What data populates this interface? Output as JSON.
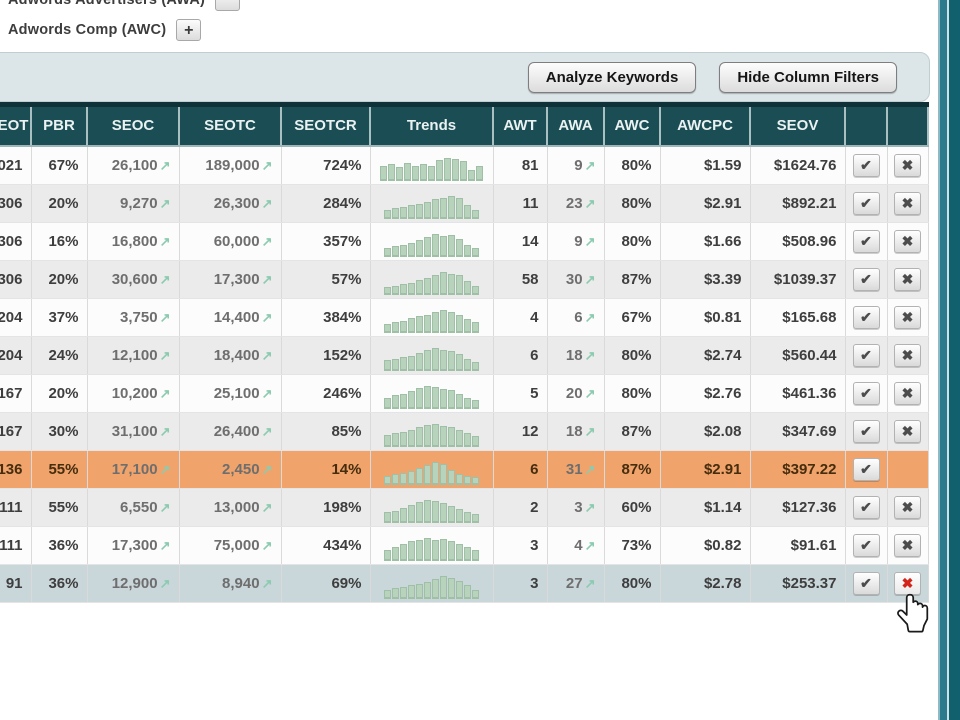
{
  "header_area": {
    "labels": [
      {
        "text": "Adwords Advertisers (AWA)"
      },
      {
        "text": "Adwords Comp (AWC)"
      }
    ]
  },
  "toolbar": {
    "analyze_label": "Analyze Keywords",
    "hide_filters_label": "Hide Column Filters"
  },
  "icons": {
    "plus": "+",
    "check": "✔",
    "remove": "✖",
    "trend_up": "↗"
  },
  "table": {
    "columns": [
      "SEOT",
      "PBR",
      "SEOC",
      "SEOTC",
      "SEOTCR",
      "Trends",
      "AWT",
      "AWA",
      "AWC",
      "AWCPC",
      "SEOV",
      "",
      ""
    ],
    "rows": [
      {
        "seot": "021",
        "pbr": "67%",
        "seoc": "26,100",
        "seotc": "189,000",
        "seotcr": "724%",
        "trend": [
          0.5,
          0.55,
          0.45,
          0.6,
          0.5,
          0.55,
          0.5,
          0.7,
          0.75,
          0.72,
          0.65,
          0.35,
          0.5
        ],
        "awt": "81",
        "awa": "9",
        "awc": "80%",
        "awcpc": "$1.59",
        "seov": "$1624.76",
        "check": true,
        "remove": true,
        "remove_red": false,
        "highlight": "none"
      },
      {
        "seot": "306",
        "pbr": "20%",
        "seoc": "9,270",
        "seotc": "26,300",
        "seotcr": "284%",
        "trend": [
          0.3,
          0.35,
          0.4,
          0.45,
          0.5,
          0.55,
          0.65,
          0.7,
          0.75,
          0.7,
          0.45,
          0.3
        ],
        "awt": "11",
        "awa": "23",
        "awc": "80%",
        "awcpc": "$2.91",
        "seov": "$892.21",
        "check": true,
        "remove": true,
        "remove_red": false,
        "highlight": "none"
      },
      {
        "seot": "306",
        "pbr": "16%",
        "seoc": "16,800",
        "seotc": "60,000",
        "seotcr": "357%",
        "trend": [
          0.3,
          0.35,
          0.4,
          0.45,
          0.55,
          0.65,
          0.75,
          0.7,
          0.72,
          0.6,
          0.4,
          0.3
        ],
        "awt": "14",
        "awa": "9",
        "awc": "80%",
        "awcpc": "$1.66",
        "seov": "$508.96",
        "check": true,
        "remove": true,
        "remove_red": false,
        "highlight": "none"
      },
      {
        "seot": "306",
        "pbr": "20%",
        "seoc": "30,600",
        "seotc": "17,300",
        "seotcr": "57%",
        "trend": [
          0.25,
          0.3,
          0.35,
          0.4,
          0.5,
          0.55,
          0.65,
          0.75,
          0.7,
          0.65,
          0.45,
          0.3
        ],
        "awt": "58",
        "awa": "30",
        "awc": "87%",
        "awcpc": "$3.39",
        "seov": "$1039.37",
        "check": true,
        "remove": true,
        "remove_red": false,
        "highlight": "none"
      },
      {
        "seot": "204",
        "pbr": "37%",
        "seoc": "3,750",
        "seotc": "14,400",
        "seotcr": "384%",
        "trend": [
          0.3,
          0.35,
          0.4,
          0.5,
          0.55,
          0.6,
          0.7,
          0.75,
          0.7,
          0.6,
          0.45,
          0.35
        ],
        "awt": "4",
        "awa": "6",
        "awc": "67%",
        "awcpc": "$0.81",
        "seov": "$165.68",
        "check": true,
        "remove": true,
        "remove_red": false,
        "highlight": "none"
      },
      {
        "seot": "204",
        "pbr": "24%",
        "seoc": "12,100",
        "seotc": "18,400",
        "seotcr": "152%",
        "trend": [
          0.35,
          0.4,
          0.45,
          0.5,
          0.6,
          0.7,
          0.75,
          0.7,
          0.65,
          0.55,
          0.4,
          0.3
        ],
        "awt": "6",
        "awa": "18",
        "awc": "80%",
        "awcpc": "$2.74",
        "seov": "$560.44",
        "check": true,
        "remove": true,
        "remove_red": false,
        "highlight": "none"
      },
      {
        "seot": "167",
        "pbr": "20%",
        "seoc": "10,200",
        "seotc": "25,100",
        "seotcr": "246%",
        "trend": [
          0.35,
          0.45,
          0.5,
          0.6,
          0.7,
          0.75,
          0.72,
          0.68,
          0.62,
          0.5,
          0.35,
          0.3
        ],
        "awt": "5",
        "awa": "20",
        "awc": "80%",
        "awcpc": "$2.76",
        "seov": "$461.36",
        "check": true,
        "remove": true,
        "remove_red": false,
        "highlight": "none"
      },
      {
        "seot": "167",
        "pbr": "30%",
        "seoc": "31,100",
        "seotc": "26,400",
        "seotcr": "85%",
        "trend": [
          0.4,
          0.45,
          0.5,
          0.55,
          0.65,
          0.72,
          0.75,
          0.7,
          0.65,
          0.55,
          0.45,
          0.35
        ],
        "awt": "12",
        "awa": "18",
        "awc": "87%",
        "awcpc": "$2.08",
        "seov": "$347.69",
        "check": true,
        "remove": true,
        "remove_red": false,
        "highlight": "none"
      },
      {
        "seot": "136",
        "pbr": "55%",
        "seoc": "17,100",
        "seotc": "2,450",
        "seotcr": "14%",
        "trend": [
          0.3,
          0.35,
          0.4,
          0.45,
          0.55,
          0.65,
          0.75,
          0.7,
          0.5,
          0.35,
          0.3,
          0.25
        ],
        "awt": "6",
        "awa": "31",
        "awc": "87%",
        "awcpc": "$2.91",
        "seov": "$397.22",
        "check": true,
        "remove": false,
        "remove_red": false,
        "highlight": "orange"
      },
      {
        "seot": "111",
        "pbr": "55%",
        "seoc": "6,550",
        "seotc": "13,000",
        "seotcr": "198%",
        "trend": [
          0.35,
          0.4,
          0.5,
          0.6,
          0.7,
          0.75,
          0.72,
          0.65,
          0.55,
          0.45,
          0.35,
          0.3
        ],
        "awt": "2",
        "awa": "3",
        "awc": "60%",
        "awcpc": "$1.14",
        "seov": "$127.36",
        "check": true,
        "remove": true,
        "remove_red": false,
        "highlight": "none"
      },
      {
        "seot": "111",
        "pbr": "36%",
        "seoc": "17,300",
        "seotc": "75,000",
        "seotcr": "434%",
        "trend": [
          0.35,
          0.45,
          0.55,
          0.65,
          0.7,
          0.75,
          0.7,
          0.72,
          0.65,
          0.55,
          0.45,
          0.35
        ],
        "awt": "3",
        "awa": "4",
        "awc": "73%",
        "awcpc": "$0.82",
        "seov": "$91.61",
        "check": true,
        "remove": true,
        "remove_red": false,
        "highlight": "none"
      },
      {
        "seot": "91",
        "pbr": "36%",
        "seoc": "12,900",
        "seotc": "8,940",
        "seotcr": "69%",
        "trend": [
          0.3,
          0.35,
          0.4,
          0.45,
          0.5,
          0.55,
          0.65,
          0.75,
          0.7,
          0.6,
          0.45,
          0.3
        ],
        "awt": "3",
        "awa": "27",
        "awc": "80%",
        "awcpc": "$2.78",
        "seov": "$253.37",
        "check": true,
        "remove": true,
        "remove_red": true,
        "highlight": "selected"
      }
    ]
  },
  "colors": {
    "header_bg": "#1a4d54",
    "toolbar_bg": "#dce6e9",
    "row_orange": "#f0a36b",
    "row_selected": "#c9d6da",
    "arrow_green": "#8ccbb0",
    "trend_bar": "#b7d3bc",
    "red_x": "#d42318",
    "edge_teal_dark": "#11606e",
    "edge_teal_mid": "#2b7b8d"
  }
}
